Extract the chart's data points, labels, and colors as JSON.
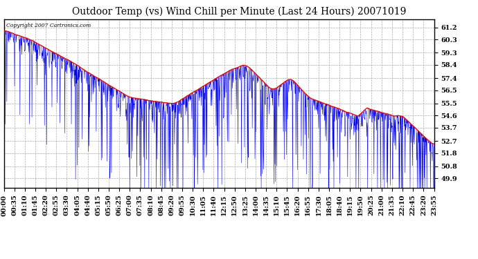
{
  "title": "Outdoor Temp (vs) Wind Chill per Minute (Last 24 Hours) 20071019",
  "copyright": "Copyright 2007 Cartronics.com",
  "yticks": [
    49.9,
    50.8,
    51.8,
    52.7,
    53.7,
    54.6,
    55.5,
    56.5,
    57.4,
    58.4,
    59.3,
    60.3,
    61.2
  ],
  "ymin": 49.2,
  "ymax": 61.8,
  "xtick_labels": [
    "00:00",
    "00:35",
    "01:10",
    "01:45",
    "02:20",
    "02:55",
    "03:30",
    "04:05",
    "04:40",
    "05:15",
    "05:50",
    "06:25",
    "07:00",
    "07:35",
    "08:10",
    "08:45",
    "09:20",
    "09:55",
    "10:30",
    "11:05",
    "11:40",
    "12:15",
    "12:50",
    "13:25",
    "14:00",
    "14:35",
    "15:10",
    "15:45",
    "16:20",
    "16:55",
    "17:30",
    "18:05",
    "18:40",
    "19:15",
    "19:50",
    "20:25",
    "21:00",
    "21:35",
    "22:10",
    "22:45",
    "23:20",
    "23:55"
  ],
  "background_color": "#ffffff",
  "plot_bg_color": "#ffffff",
  "grid_color": "#aaaaaa",
  "line_color_blue": "#0000ee",
  "line_color_red": "#ff0000",
  "title_fontsize": 10,
  "tick_fontsize": 7,
  "n_minutes": 1440
}
